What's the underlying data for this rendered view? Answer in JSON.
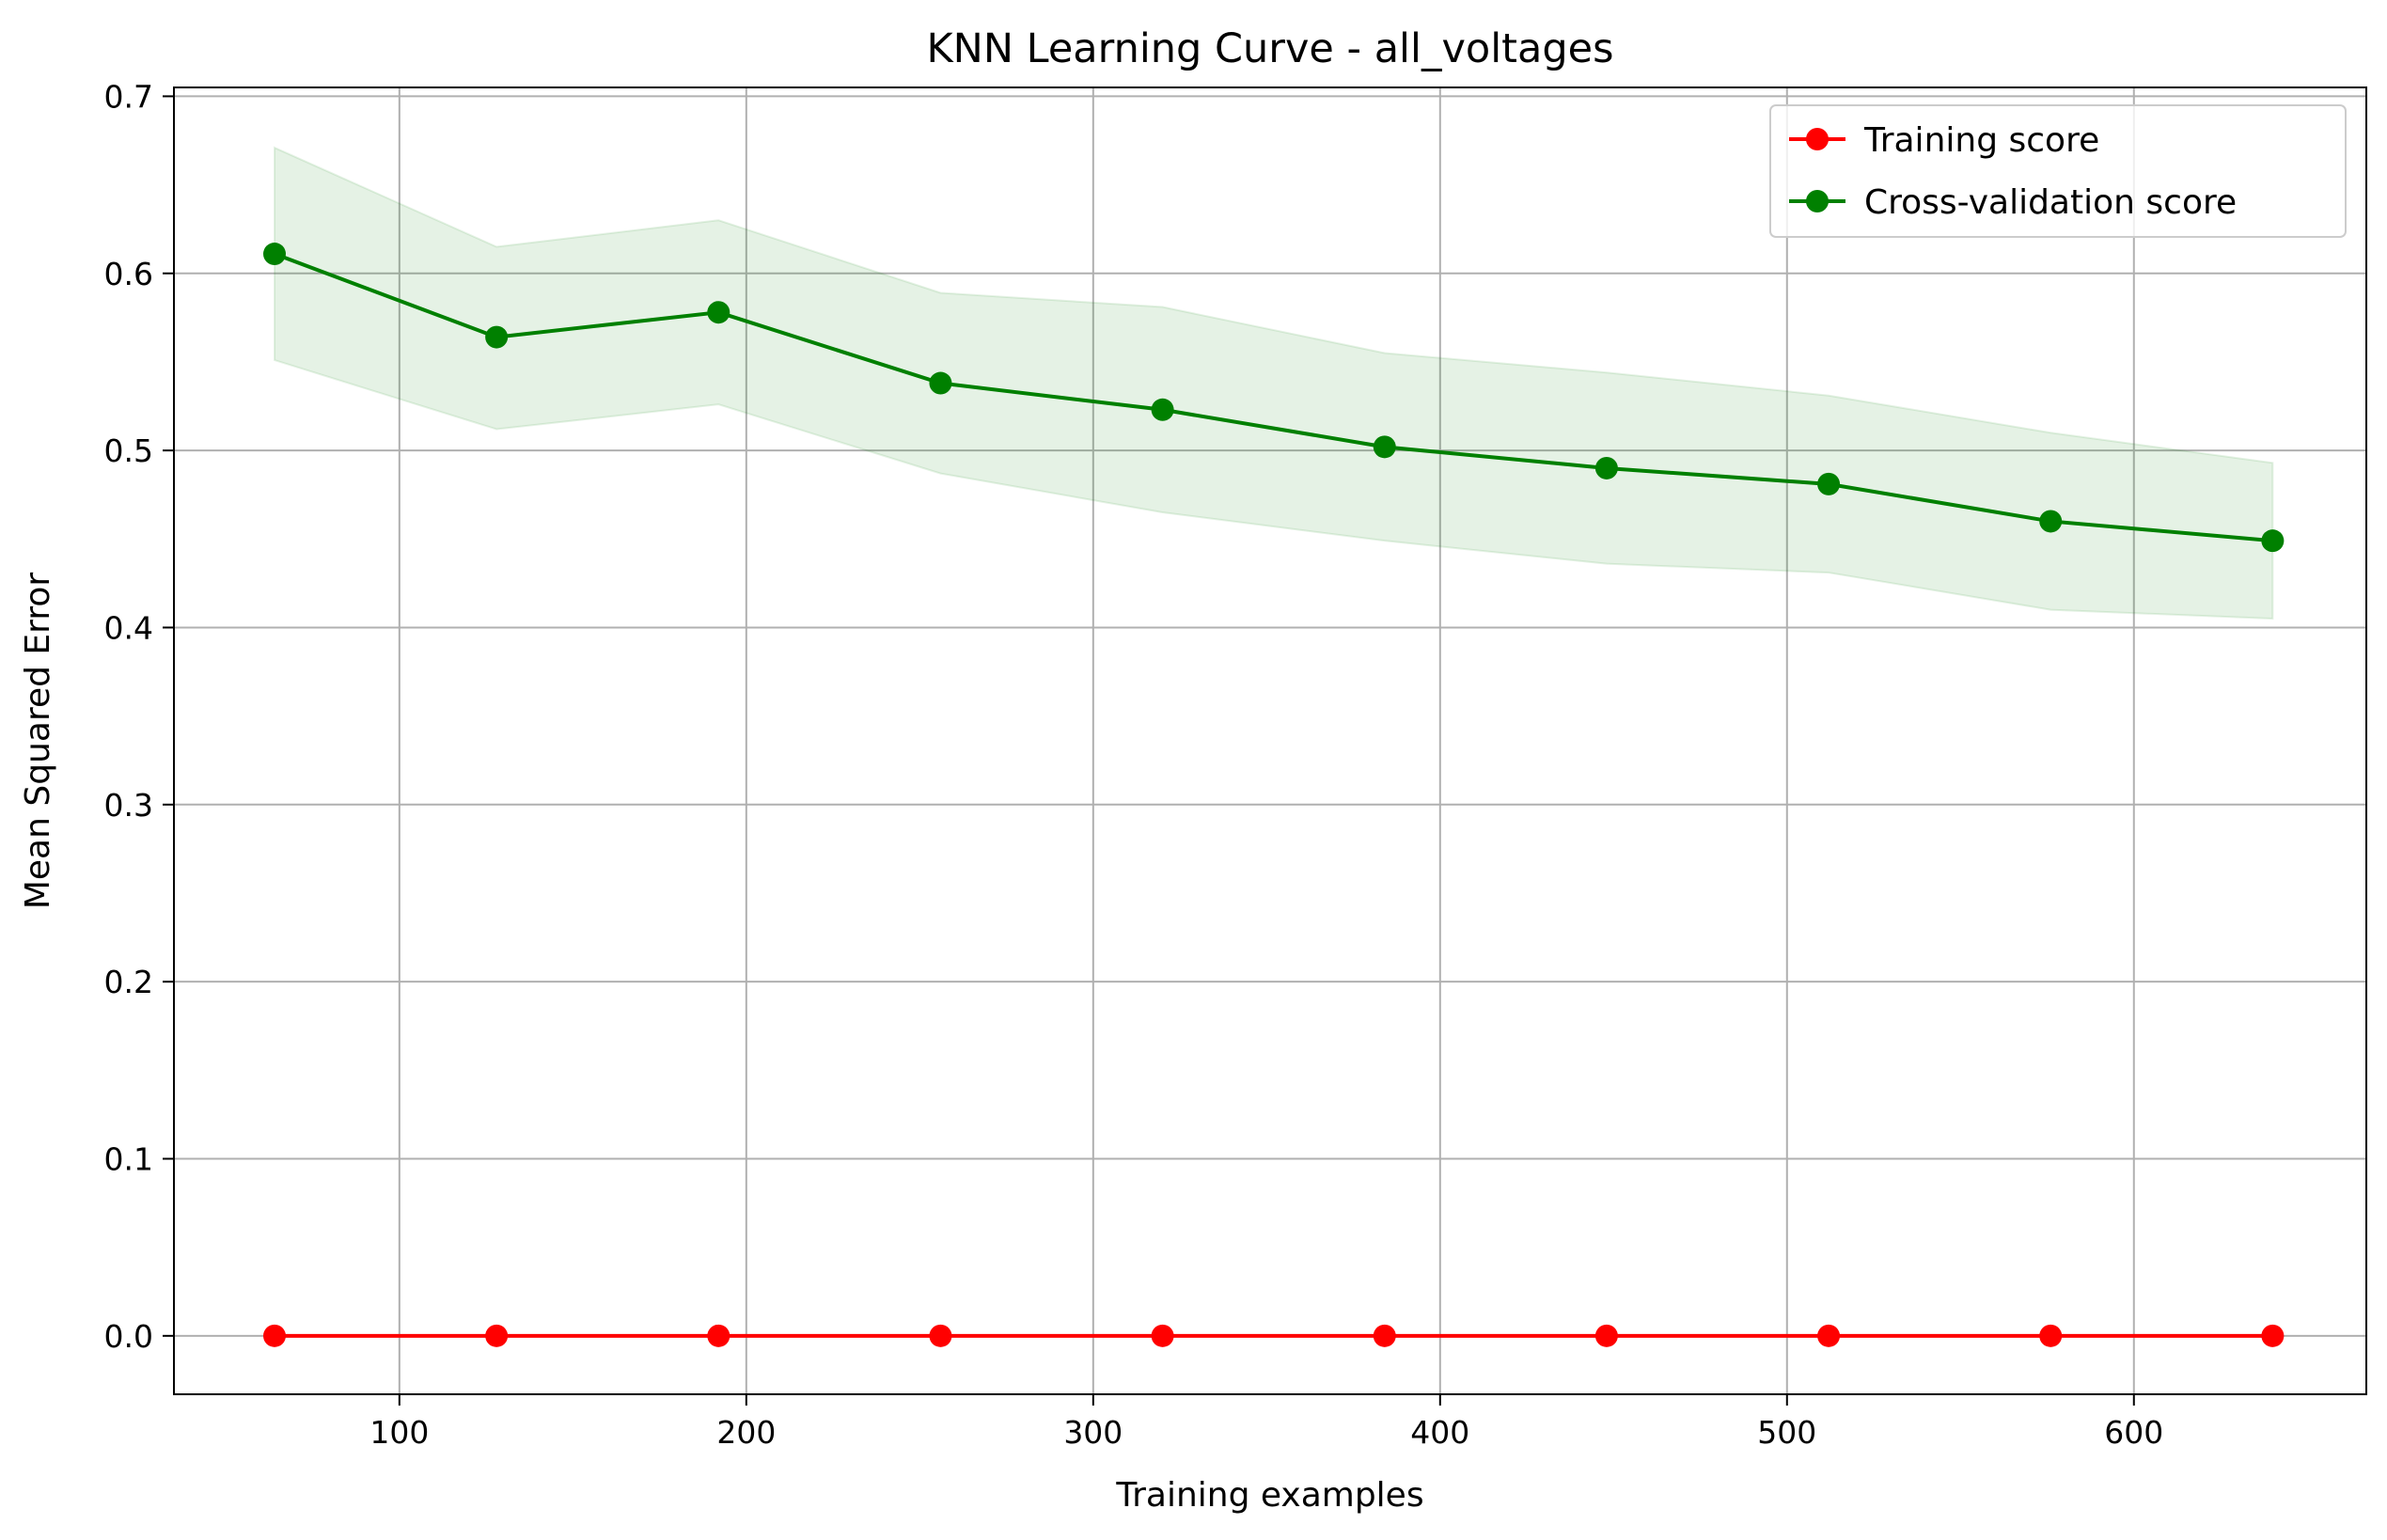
{
  "chart_data": {
    "type": "line",
    "title": "KNN Learning Curve - all_voltages",
    "xlabel": "Training examples",
    "ylabel": "Mean Squared Error",
    "xlim": [
      35,
      667
    ],
    "ylim": [
      -0.033,
      0.705
    ],
    "xticks": [
      100,
      200,
      300,
      400,
      500,
      600
    ],
    "yticks": [
      0.0,
      0.1,
      0.2,
      0.3,
      0.4,
      0.5,
      0.6,
      0.7
    ],
    "xtick_labels": [
      "100",
      "200",
      "300",
      "400",
      "500",
      "600"
    ],
    "ytick_labels": [
      "0.0",
      "0.1",
      "0.2",
      "0.3",
      "0.4",
      "0.5",
      "0.6",
      "0.7"
    ],
    "grid": true,
    "legend_position": "top-right",
    "x": [
      64,
      128,
      192,
      256,
      320,
      384,
      448,
      512,
      576,
      640
    ],
    "series": [
      {
        "name": "Training score",
        "color": "#ff0000",
        "marker": "circle",
        "values": [
          0,
          0,
          0,
          0,
          0,
          0,
          0,
          0,
          0,
          0
        ],
        "band_upper": [
          0,
          0,
          0,
          0,
          0,
          0,
          0,
          0,
          0,
          0
        ],
        "band_lower": [
          0,
          0,
          0,
          0,
          0,
          0,
          0,
          0,
          0,
          0
        ]
      },
      {
        "name": "Cross-validation score",
        "color": "#008000",
        "marker": "circle",
        "values": [
          0.611,
          0.564,
          0.578,
          0.538,
          0.523,
          0.502,
          0.49,
          0.481,
          0.46,
          0.449
        ],
        "band_upper": [
          0.671,
          0.615,
          0.63,
          0.589,
          0.581,
          0.555,
          0.544,
          0.531,
          0.51,
          0.493
        ],
        "band_lower": [
          0.551,
          0.512,
          0.526,
          0.487,
          0.465,
          0.449,
          0.436,
          0.431,
          0.41,
          0.405
        ]
      }
    ],
    "band_color": "#008000",
    "band_opacity": 0.1
  }
}
